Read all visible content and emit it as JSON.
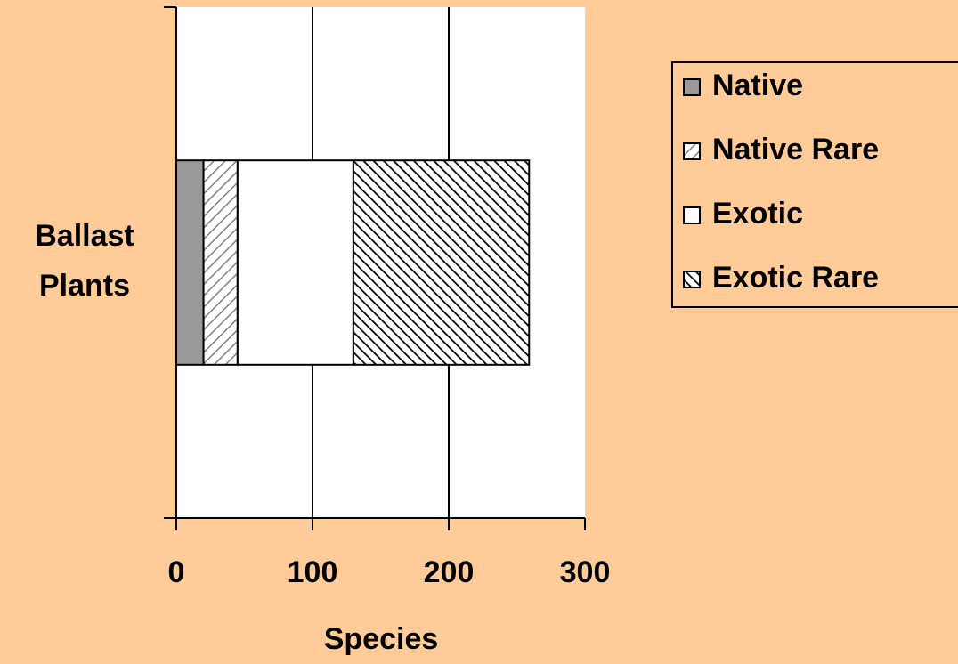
{
  "chart_data": {
    "type": "stacked-bar-horizontal",
    "categories": [
      "Ballast Plants"
    ],
    "series": [
      {
        "name": "Native",
        "color": "#999999",
        "pattern": "solid",
        "values": [
          20
        ]
      },
      {
        "name": "Native Rare",
        "color": "#808080",
        "pattern": "diagonal-light",
        "values": [
          25
        ]
      },
      {
        "name": "Exotic",
        "color": "#ffffff",
        "pattern": "solid",
        "values": [
          85
        ]
      },
      {
        "name": "Exotic Rare",
        "color": "#000000",
        "pattern": "diagonal-dense",
        "values": [
          129
        ]
      }
    ],
    "xlabel": "Species",
    "xlim": [
      0,
      300
    ],
    "xticks": [
      0,
      100,
      200,
      300
    ],
    "grid": true,
    "legend": "right"
  }
}
